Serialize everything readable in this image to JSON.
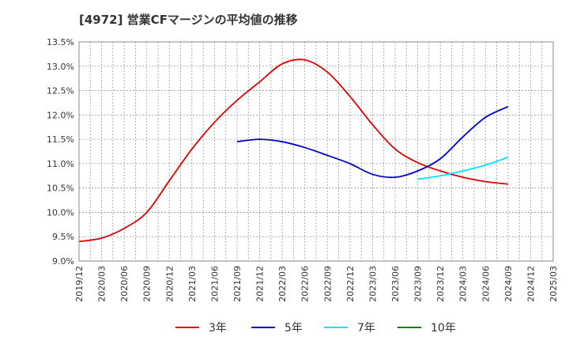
{
  "chart_data": {
    "type": "line",
    "title": "[4972]  営業CFマージンの平均値の推移",
    "xlabel": "",
    "ylabel": "",
    "x_ticks": [
      "2019/12",
      "2020/03",
      "2020/06",
      "2020/09",
      "2020/12",
      "2021/03",
      "2021/06",
      "2021/09",
      "2021/12",
      "2022/03",
      "2022/06",
      "2022/09",
      "2022/12",
      "2023/03",
      "2023/06",
      "2023/09",
      "2023/12",
      "2024/03",
      "2024/06",
      "2024/09",
      "2024/12",
      "2025/03"
    ],
    "y_ticks": [
      "9.0%",
      "9.5%",
      "10.0%",
      "10.5%",
      "11.0%",
      "11.5%",
      "12.0%",
      "12.5%",
      "13.0%",
      "13.5%"
    ],
    "ylim": [
      9.0,
      13.5
    ],
    "grid": true,
    "legend_position": "bottom",
    "series": [
      {
        "name": "3年",
        "color": "#e00000",
        "values": [
          9.4,
          9.47,
          9.67,
          10.0,
          10.65,
          11.3,
          11.85,
          12.3,
          12.68,
          13.05,
          13.13,
          12.88,
          12.38,
          11.8,
          11.3,
          11.02,
          10.85,
          10.72,
          10.63,
          10.58,
          null,
          null
        ]
      },
      {
        "name": "5年",
        "color": "#0000cc",
        "values": [
          null,
          null,
          null,
          null,
          null,
          null,
          null,
          11.45,
          11.5,
          11.45,
          11.33,
          11.17,
          11.0,
          10.78,
          10.72,
          10.85,
          11.1,
          11.55,
          11.95,
          12.17,
          null,
          null
        ]
      },
      {
        "name": "7年",
        "color": "#00e5ff",
        "values": [
          null,
          null,
          null,
          null,
          null,
          null,
          null,
          null,
          null,
          null,
          null,
          null,
          null,
          null,
          null,
          10.68,
          10.75,
          10.85,
          10.97,
          11.13,
          null,
          null
        ]
      },
      {
        "name": "10年",
        "color": "#008000",
        "values": [
          null,
          null,
          null,
          null,
          null,
          null,
          null,
          null,
          null,
          null,
          null,
          null,
          null,
          null,
          null,
          null,
          null,
          null,
          null,
          null,
          null,
          null
        ]
      }
    ]
  }
}
